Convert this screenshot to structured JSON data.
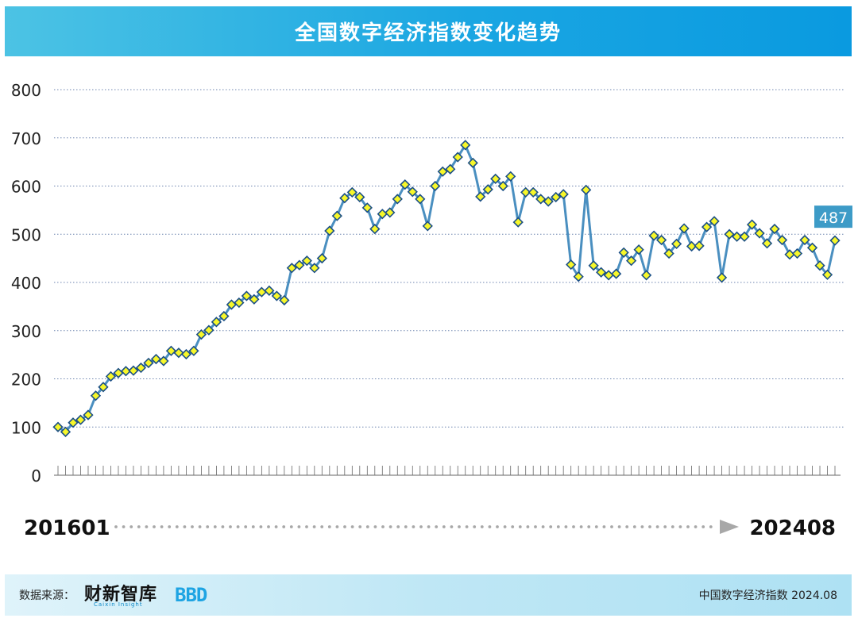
{
  "title": "全国数字经济指数变化趋势",
  "colors": {
    "title_bg": "#1aa6e2",
    "line": "#4a8fc0",
    "marker_fill": "#f7f72a",
    "marker_stroke": "#1b4f86",
    "last_label_bg": "#3d9bc7"
  },
  "chart_data": {
    "type": "line",
    "title": "全国数字经济指数变化趋势",
    "ylim": [
      0,
      800
    ],
    "yticks": [
      "0",
      "100",
      "200",
      "300",
      "400",
      "500",
      "600",
      "700",
      "800"
    ],
    "grid": true,
    "x_start_label": "201601",
    "x_end_label": "202408",
    "last_value_label": "487",
    "series": [
      {
        "values": [
          100,
          90,
          109,
          115,
          125,
          165,
          183,
          205,
          212,
          216,
          217,
          223,
          233,
          241,
          237,
          258,
          254,
          251,
          258,
          292,
          301,
          318,
          330,
          354,
          358,
          372,
          365,
          380,
          383,
          372,
          363,
          430,
          436,
          445,
          430,
          450,
          507,
          538,
          575,
          587,
          577,
          555,
          511,
          542,
          545,
          573,
          603,
          588,
          573,
          517,
          600,
          630,
          635,
          660,
          685,
          648,
          578,
          593,
          615,
          600,
          620,
          525,
          587,
          587,
          573,
          568,
          577,
          583,
          437,
          412,
          592,
          435,
          421,
          415,
          418,
          462,
          445,
          468,
          415,
          497,
          488,
          460,
          480,
          512,
          475,
          476,
          515,
          527,
          410,
          500,
          495,
          495,
          520,
          502,
          481,
          511,
          488,
          458,
          460,
          488,
          472,
          435,
          416,
          487
        ]
      }
    ]
  },
  "footer": {
    "source_label": "数据来源：",
    "logo_cn": "财新智库",
    "logo_en": "Caixin Insight",
    "logo_bbd": "BBD",
    "right_text": "中国数字经济指数 2024.08"
  }
}
